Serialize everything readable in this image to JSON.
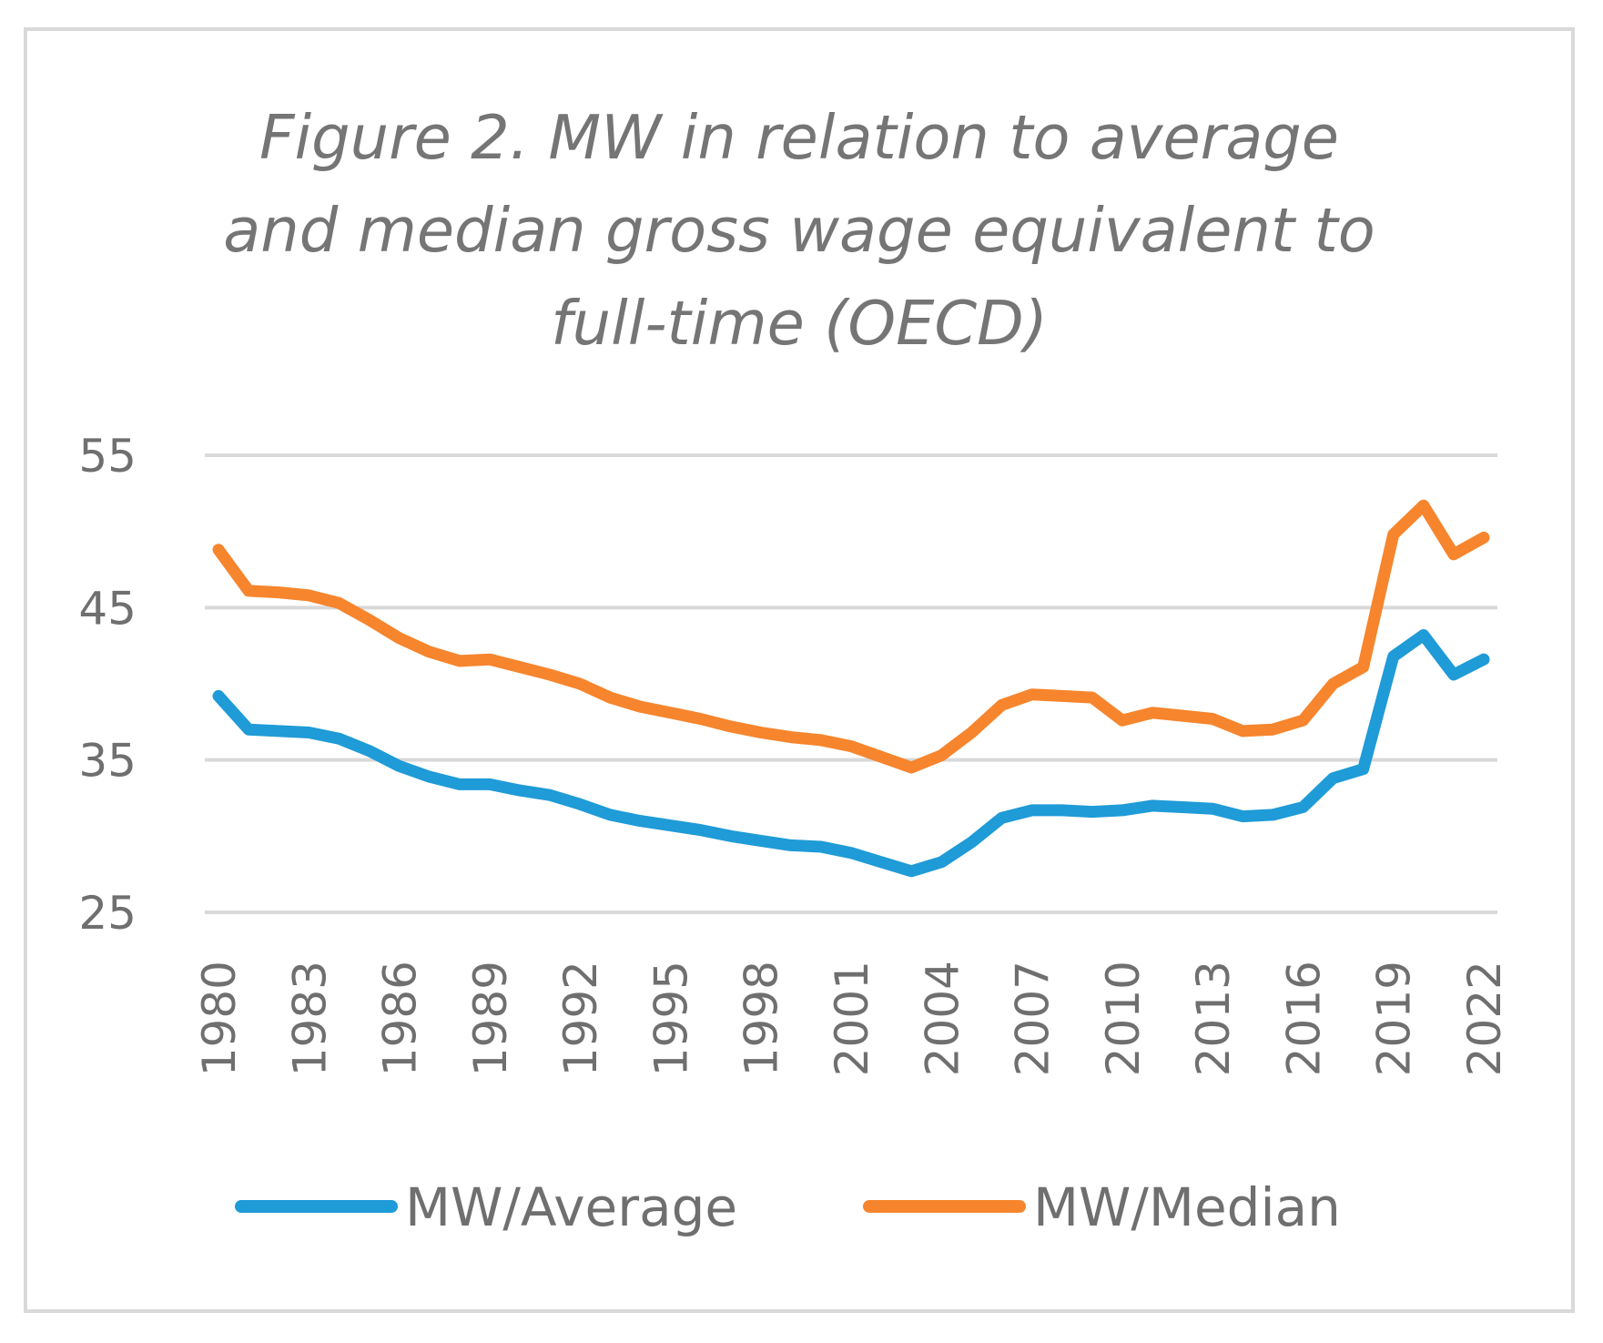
{
  "chart_data": {
    "type": "line",
    "title_lines": [
      "Figure 2. MW in relation to average",
      "and median gross wage equivalent to",
      "full-time (OECD)"
    ],
    "xlabel": "",
    "ylabel": "",
    "ylim": [
      25,
      55
    ],
    "yticks": [
      "55",
      "45",
      "35",
      "25"
    ],
    "ytick_values": [
      55,
      45,
      35,
      25
    ],
    "x": [
      1980,
      1981,
      1982,
      1983,
      1984,
      1985,
      1986,
      1987,
      1988,
      1989,
      1990,
      1991,
      1992,
      1993,
      1994,
      1995,
      1996,
      1997,
      1998,
      1999,
      2000,
      2001,
      2002,
      2003,
      2004,
      2005,
      2006,
      2007,
      2008,
      2009,
      2010,
      2011,
      2012,
      2013,
      2014,
      2015,
      2016,
      2017,
      2018,
      2019,
      2020,
      2021,
      2022
    ],
    "xtick_labels": [
      "1980",
      "1983",
      "1986",
      "1989",
      "1992",
      "1995",
      "1998",
      "2001",
      "2004",
      "2007",
      "2010",
      "2013",
      "2016",
      "2019",
      "2022"
    ],
    "xtick_values": [
      1980,
      1983,
      1986,
      1989,
      1992,
      1995,
      1998,
      2001,
      2004,
      2007,
      2010,
      2013,
      2016,
      2019,
      2022
    ],
    "grid": true,
    "legend_position": "bottom",
    "series": [
      {
        "name": "MW/Average",
        "color": "#1f9bd7",
        "values": [
          39.2,
          37.0,
          36.9,
          36.8,
          36.4,
          35.6,
          34.6,
          33.9,
          33.4,
          33.4,
          33.0,
          32.7,
          32.1,
          31.4,
          31.0,
          30.7,
          30.4,
          30.0,
          29.7,
          29.4,
          29.3,
          28.9,
          28.3,
          27.7,
          28.3,
          29.6,
          31.2,
          31.7,
          31.7,
          31.6,
          31.7,
          32.0,
          31.9,
          31.8,
          31.3,
          31.4,
          31.9,
          33.8,
          34.4,
          41.8,
          43.2,
          40.6,
          41.6
        ]
      },
      {
        "name": "MW/Median",
        "color": "#f6852d",
        "values": [
          48.8,
          46.1,
          46.0,
          45.8,
          45.3,
          44.2,
          43.0,
          42.1,
          41.5,
          41.6,
          41.1,
          40.6,
          40.0,
          39.1,
          38.5,
          38.1,
          37.7,
          37.2,
          36.8,
          36.5,
          36.3,
          35.9,
          35.2,
          34.5,
          35.3,
          36.8,
          38.6,
          39.3,
          39.2,
          39.1,
          37.6,
          38.1,
          37.9,
          37.7,
          36.9,
          37.0,
          37.6,
          40.0,
          41.1,
          49.8,
          51.7,
          48.5,
          49.6
        ]
      }
    ]
  }
}
